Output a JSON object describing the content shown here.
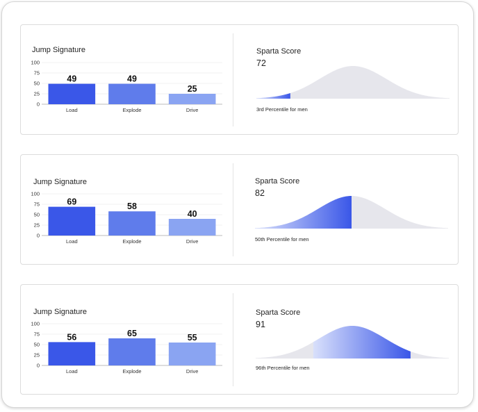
{
  "panels": [
    {
      "jump": {
        "title": "Jump Signature",
        "chart_data": {
          "type": "bar",
          "categories": [
            "Load",
            "Explode",
            "Drive"
          ],
          "values": [
            49,
            49,
            25
          ],
          "ylim": [
            0,
            100
          ],
          "yticks": [
            "100",
            "75",
            "50",
            "25",
            "0"
          ],
          "colors": [
            "#3a57e8",
            "#5f7ceb",
            "#8aa4f2"
          ]
        }
      },
      "sparta": {
        "title": "Sparta Score",
        "score": "72",
        "percentile_label": "3rd Percentile for men",
        "chart_data": {
          "type": "area",
          "percentile": 3,
          "highlight": "left"
        }
      }
    },
    {
      "jump": {
        "title": "Jump Signature",
        "chart_data": {
          "type": "bar",
          "categories": [
            "Load",
            "Explode",
            "Drive"
          ],
          "values": [
            69,
            58,
            40
          ],
          "ylim": [
            0,
            100
          ],
          "yticks": [
            "100",
            "75",
            "50",
            "25",
            "0"
          ],
          "colors": [
            "#3a57e8",
            "#5f7ceb",
            "#8aa4f2"
          ]
        }
      },
      "sparta": {
        "title": "Sparta Score",
        "score": "82",
        "percentile_label": "50th Percentile for men",
        "chart_data": {
          "type": "area",
          "percentile": 50,
          "highlight": "left"
        }
      }
    },
    {
      "jump": {
        "title": "Jump Signature",
        "chart_data": {
          "type": "bar",
          "categories": [
            "Load",
            "Explode",
            "Drive"
          ],
          "values": [
            56,
            65,
            55
          ],
          "ylim": [
            0,
            100
          ],
          "yticks": [
            "100",
            "75",
            "50",
            "25",
            "0"
          ],
          "colors": [
            "#3a57e8",
            "#5f7ceb",
            "#8aa4f2"
          ]
        }
      },
      "sparta": {
        "title": "Sparta Score",
        "score": "91",
        "percentile_label": "96th Percentile for men",
        "chart_data": {
          "type": "area",
          "percentile": 96,
          "highlight": "left"
        }
      }
    }
  ],
  "colors": {
    "curve_gray": "#e6e6ec",
    "gradient_light": "#d9e0fb",
    "gradient_dark": "#3a57e8"
  }
}
